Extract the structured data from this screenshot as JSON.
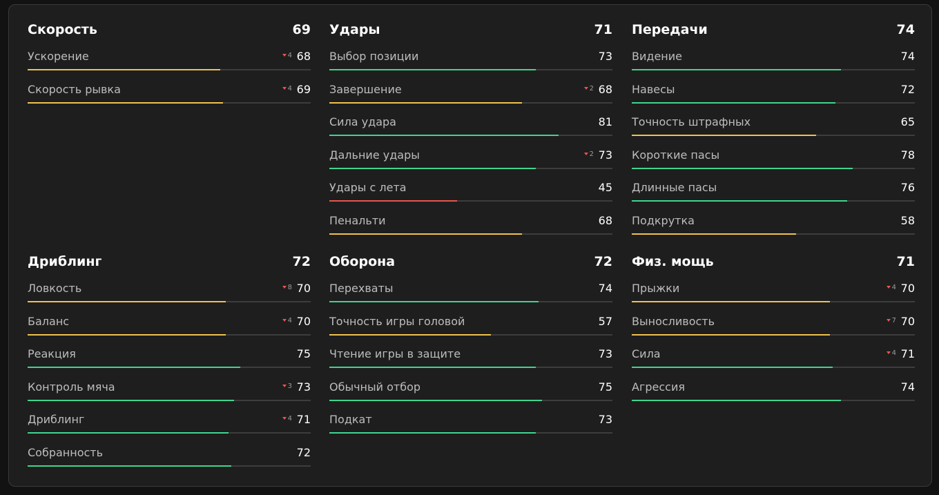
{
  "xlim": [
    0,
    100
  ],
  "groups": [
    {
      "title": "Скорость",
      "value": 69,
      "stats": [
        {
          "name": "Ускорение",
          "value": 68,
          "change": 4,
          "color": "#f0c24f"
        },
        {
          "name": "Скорость рывка",
          "value": 69,
          "change": 4,
          "color": "#f0c24f"
        }
      ]
    },
    {
      "title": "Удары",
      "value": 71,
      "stats": [
        {
          "name": "Выбор позиции",
          "value": 73,
          "color": "#3fd68e"
        },
        {
          "name": "Завершение",
          "value": 68,
          "change": 2,
          "color": "#f0c24f"
        },
        {
          "name": "Сила удара",
          "value": 81,
          "color": "#3fd68e"
        },
        {
          "name": "Дальние удары",
          "value": 73,
          "change": 2,
          "color": "#3fd68e"
        },
        {
          "name": "Удары с лета",
          "value": 45,
          "color": "#e8564f"
        },
        {
          "name": "Пенальти",
          "value": 68,
          "color": "#f0c24f"
        }
      ]
    },
    {
      "title": "Передачи",
      "value": 74,
      "stats": [
        {
          "name": "Видение",
          "value": 74,
          "color": "#3fd68e"
        },
        {
          "name": "Навесы",
          "value": 72,
          "color": "#3fd68e"
        },
        {
          "name": "Точность штрафных",
          "value": 65,
          "color": "#f0c24f"
        },
        {
          "name": "Короткие пасы",
          "value": 78,
          "color": "#3fd68e"
        },
        {
          "name": "Длинные пасы",
          "value": 76,
          "color": "#3fd68e"
        },
        {
          "name": "Подкрутка",
          "value": 58,
          "color": "#f0c24f"
        }
      ]
    },
    {
      "title": "Дриблинг",
      "value": 72,
      "stats": [
        {
          "name": "Ловкость",
          "value": 70,
          "change": 8,
          "color": "#f0c24f"
        },
        {
          "name": "Баланс",
          "value": 70,
          "change": 4,
          "color": "#f0c24f"
        },
        {
          "name": "Реакция",
          "value": 75,
          "color": "#3fd68e"
        },
        {
          "name": "Контроль мяча",
          "value": 73,
          "change": 3,
          "color": "#3fd68e"
        },
        {
          "name": "Дриблинг",
          "value": 71,
          "change": 4,
          "color": "#3fd68e"
        },
        {
          "name": "Собранность",
          "value": 72,
          "color": "#3fd68e"
        }
      ]
    },
    {
      "title": "Оборона",
      "value": 72,
      "stats": [
        {
          "name": "Перехваты",
          "value": 74,
          "color": "#3fd68e"
        },
        {
          "name": "Точность игры головой",
          "value": 57,
          "color": "#f0c24f"
        },
        {
          "name": "Чтение игры в защите",
          "value": 73,
          "color": "#3fd68e"
        },
        {
          "name": "Обычный отбор",
          "value": 75,
          "color": "#3fd68e"
        },
        {
          "name": "Подкат",
          "value": 73,
          "color": "#3fd68e"
        }
      ]
    },
    {
      "title": "Физ. мощь",
      "value": 71,
      "stats": [
        {
          "name": "Прыжки",
          "value": 70,
          "change": 4,
          "color": "#f0c24f"
        },
        {
          "name": "Выносливость",
          "value": 70,
          "change": 7,
          "color": "#f0c24f"
        },
        {
          "name": "Сила",
          "value": 71,
          "change": 4,
          "color": "#3fd68e"
        },
        {
          "name": "Агрессия",
          "value": 74,
          "color": "#3fd68e"
        }
      ]
    }
  ]
}
